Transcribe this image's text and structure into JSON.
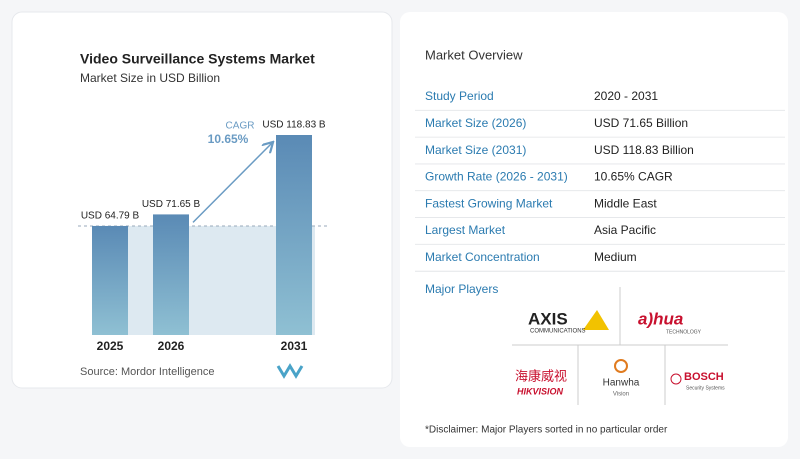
{
  "chart_data": {
    "type": "bar",
    "title": "Video Surveillance Systems Market",
    "subtitle": "Market Size in USD Billion",
    "categories": [
      "2025",
      "2026",
      "2031"
    ],
    "values": [
      64.79,
      71.65,
      118.83
    ],
    "value_labels": [
      "USD 64.79 B",
      "USD 71.65 B",
      "USD 118.83 B"
    ],
    "annotation": {
      "label": "CAGR",
      "value": "10.65%"
    },
    "color": "#6a9bc3",
    "source": "Source:  Mordor Intelligence"
  },
  "overview": {
    "title": "Market Overview",
    "rows": [
      [
        "Study Period",
        "2020 - 2031"
      ],
      [
        "Market Size (2026)",
        "USD 71.65 Billion"
      ],
      [
        "Market Size (2031)",
        "USD 118.83 Billion"
      ],
      [
        "Growth Rate (2026 - 2031)",
        "10.65% CAGR"
      ],
      [
        "Fastest Growing Market",
        "Middle East"
      ],
      [
        "Largest Market",
        "Asia Pacific"
      ],
      [
        "Market Concentration",
        "Medium"
      ]
    ]
  },
  "players": {
    "title": "Major Players",
    "logos": [
      [
        "AXIS",
        "COMMUNICATIONS"
      ],
      [
        "a)hua",
        "TECHNOLOGY"
      ],
      [
        "海康威视",
        "HIKVISION"
      ],
      [
        "Hanwha",
        "Vision"
      ],
      [
        "BOSCH",
        "Security Systems"
      ]
    ]
  },
  "disclaimer": "*Disclaimer: Major Players sorted in no particular order"
}
